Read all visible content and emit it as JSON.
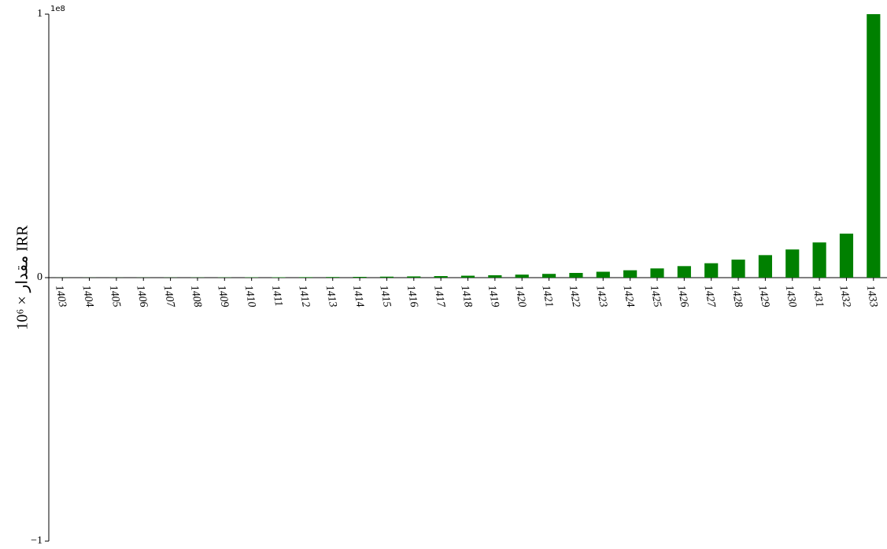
{
  "chart_data": {
    "type": "bar",
    "y_label": "مقدار × 10⁶ IRR",
    "offset_label": "1e8",
    "categories": [
      "1403",
      "1404",
      "1405",
      "1406",
      "1407",
      "1408",
      "1409",
      "1410",
      "1411",
      "1412",
      "1413",
      "1414",
      "1415",
      "1416",
      "1417",
      "1418",
      "1419",
      "1420",
      "1421",
      "1422",
      "1423",
      "1424",
      "1425",
      "1426",
      "1427",
      "1428",
      "1429",
      "1430",
      "1431",
      "1432",
      "1433"
    ],
    "values": [
      26000,
      32000,
      40000,
      50000,
      63000,
      79000,
      98000,
      123000,
      154000,
      192000,
      240000,
      300000,
      375000,
      470000,
      590000,
      735000,
      920000,
      1150000,
      1430000,
      1790000,
      2240000,
      2800000,
      3500000,
      4380000,
      5470000,
      6840000,
      8550000,
      10690000,
      13360000,
      16700000,
      100000000
    ],
    "color": "#008000",
    "ylim": [
      -100000000,
      100000000
    ],
    "yticks": [
      {
        "value": -100000000,
        "label": "−1"
      },
      0,
      {
        "value": 100000000,
        "label": "1"
      }
    ],
    "grid": false
  }
}
